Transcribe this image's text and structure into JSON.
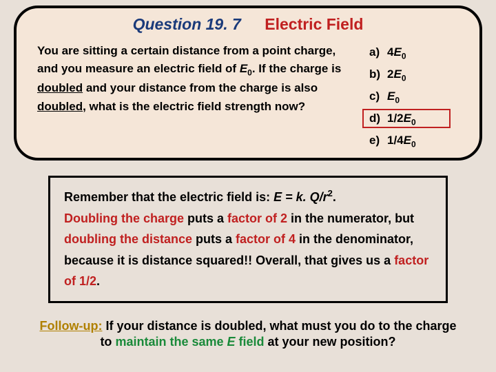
{
  "title": {
    "number": "Question 19. 7",
    "topic": "Electric Field"
  },
  "question": {
    "p1": "You are sitting a certain distance from a point charge, and you measure an electric field of ",
    "var1": "E",
    "sub1": "0",
    "p2": ".   If the charge is ",
    "u1": "doubled",
    "p3": " and your distance from the charge is also ",
    "u2": "doubled",
    "p4": ", what is the electric field strength now?"
  },
  "options": {
    "a": {
      "letter": "a)",
      "pre": "4",
      "var": "E",
      "sub": "0"
    },
    "b": {
      "letter": "b)",
      "pre": "2",
      "var": "E",
      "sub": "0"
    },
    "c": {
      "letter": "c)",
      "pre": "",
      "var": "E",
      "sub": "0"
    },
    "d": {
      "letter": "d)",
      "pre": "1/2",
      "var": "E",
      "sub": "0"
    },
    "e": {
      "letter": "e)",
      "pre": "1/4",
      "var": "E",
      "sub": "0"
    }
  },
  "explain": {
    "l1a": "Remember that the electric field is:  ",
    "l1b": "E  =  k. Q/r",
    "l1sup": "2",
    "l1c": ".",
    "l2a": " Doubling the charge",
    "l2b": " puts a ",
    "l2c": "factor of 2",
    "l2d": " in the numerator, but ",
    "l2e": "doubling the distance",
    "l2f": " puts a ",
    "l2g": "factor of 4",
    "l2h": " in the denominator, because it is distance squared!!   Overall, that gives us a ",
    "l2i": "factor of 1/2",
    "l2j": "."
  },
  "followup": {
    "label": "Follow-up:",
    "p1": "  If your distance is doubled, what must you do to the charge to ",
    "green": "maintain the same ",
    "ital": "E",
    "green2": " field",
    "p2": " at your new position?"
  },
  "colors": {
    "bg": "#e8e0d8",
    "box_bg": "#f5e6d8",
    "blue": "#1a3a7a",
    "red": "#c02020",
    "gold": "#b08000",
    "green": "#1a8a3a"
  }
}
